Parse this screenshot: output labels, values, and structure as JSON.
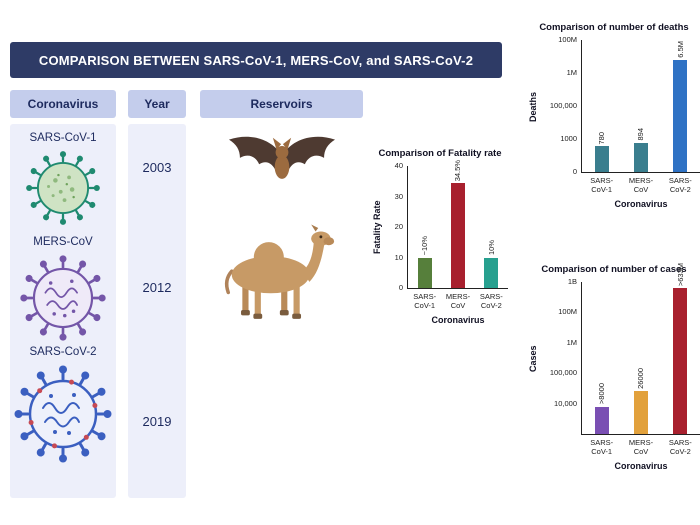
{
  "banner": {
    "title": "COMPARISON BETWEEN SARS-CoV-1, MERS-CoV, and  SARS-CoV-2"
  },
  "columns": {
    "coronavirus": "Coronavirus",
    "year": "Year",
    "reservoirs": "Reservoirs"
  },
  "viruses": [
    {
      "name": "SARS-CoV-1",
      "year": "2003",
      "reservoir": "bat"
    },
    {
      "name": "MERS-CoV",
      "year": "2012",
      "reservoir": "camel"
    },
    {
      "name": "SARS-CoV-2",
      "year": "2019",
      "reservoir": "-"
    }
  ],
  "colors": {
    "banner_bg": "#2e3b66",
    "header_bg": "#c4cdec",
    "column_bg": "#edeffa",
    "navy_text": "#1d2a5e",
    "sars1_virus": "#1f8a70",
    "mers_virus": "#7456a8",
    "sars2_virus": "#3b5fc0"
  },
  "chart_data": [
    {
      "id": "deaths",
      "type": "bar",
      "scale": "log",
      "title": "Comparison of number of deaths",
      "ylabel": "Deaths",
      "xlabel": "Coronavirus",
      "grid": false,
      "legend": false,
      "yticks": [
        {
          "label": "0",
          "value": 0,
          "pos": 0
        },
        {
          "label": "1000",
          "value": 1000,
          "pos": 0.25
        },
        {
          "label": "100,000",
          "value": 100000,
          "pos": 0.5
        },
        {
          "label": "1M",
          "value": 1000000,
          "pos": 0.75
        },
        {
          "label": "100M",
          "value": 100000000,
          "pos": 1.0
        }
      ],
      "bars": [
        {
          "category_lines": [
            "SARS-",
            "CoV-1"
          ],
          "value": 780,
          "value_label": "780",
          "color": "#3a7e8e"
        },
        {
          "category_lines": [
            "MERS-",
            "CoV"
          ],
          "value": 894,
          "value_label": "894",
          "color": "#3a7e8e"
        },
        {
          "category_lines": [
            "SARS-",
            "CoV-2"
          ],
          "value": 6500000,
          "value_label": "6.5M",
          "color": "#2f72c4"
        }
      ]
    },
    {
      "id": "fatality",
      "type": "bar",
      "scale": "linear",
      "title": "Comparison of Fatality rate",
      "ylabel": "Fatality Rate",
      "xlabel": "Coronavirus",
      "grid": false,
      "legend": false,
      "yticks": [
        {
          "label": "0",
          "value": 0,
          "pos": 0
        },
        {
          "label": "10",
          "value": 10,
          "pos": 0.25
        },
        {
          "label": "20",
          "value": 20,
          "pos": 0.5
        },
        {
          "label": "30",
          "value": 30,
          "pos": 0.75
        },
        {
          "label": "40",
          "value": 40,
          "pos": 1.0
        }
      ],
      "bars": [
        {
          "category_lines": [
            "SARS-",
            "CoV-1"
          ],
          "value": 10,
          "value_label": "~10%",
          "color": "#567f3b"
        },
        {
          "category_lines": [
            "MERS-",
            "CoV"
          ],
          "value": 34.5,
          "value_label": "34.5%",
          "color": "#a8202e"
        },
        {
          "category_lines": [
            "SARS-",
            "CoV-2"
          ],
          "value": 10,
          "value_label": "10%",
          "color": "#27a08f"
        }
      ]
    },
    {
      "id": "cases",
      "type": "bar",
      "scale": "log",
      "title": "Comparison of number of cases",
      "ylabel": "Cases",
      "xlabel": "Coronavirus",
      "grid": false,
      "legend": false,
      "yticks": [
        {
          "label": "",
          "value": 1000,
          "pos": 0
        },
        {
          "label": "10,000",
          "value": 10000,
          "pos": 0.2
        },
        {
          "label": "100,000",
          "value": 100000,
          "pos": 0.4
        },
        {
          "label": "1M",
          "value": 1000000,
          "pos": 0.6
        },
        {
          "label": "100M",
          "value": 100000000,
          "pos": 0.8
        },
        {
          "label": "1B",
          "value": 1000000000,
          "pos": 1.0
        }
      ],
      "bars": [
        {
          "category_lines": [
            "SARS-",
            "CoV-1"
          ],
          "value": 8000,
          "value_label": ">8000",
          "color": "#7a4fb3"
        },
        {
          "category_lines": [
            "MERS-",
            "CoV"
          ],
          "value": 26000,
          "value_label": "26000",
          "color": "#e2a13c"
        },
        {
          "category_lines": [
            "SARS-",
            "CoV-2"
          ],
          "value": 633000000,
          "value_label": ">633M",
          "color": "#a8202e"
        }
      ]
    }
  ]
}
